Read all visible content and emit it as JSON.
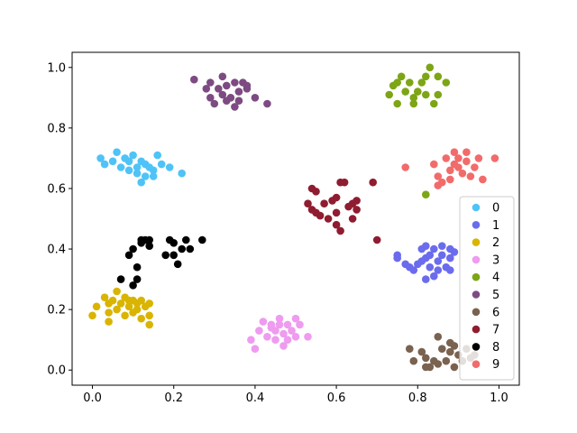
{
  "chart_data": {
    "type": "scatter",
    "title": "",
    "xlabel": "",
    "ylabel": "",
    "xlim": [
      -0.05,
      1.05
    ],
    "ylim": [
      -0.05,
      1.05
    ],
    "xticks": [
      "0.0",
      "0.2",
      "0.4",
      "0.6",
      "0.8",
      "1.0"
    ],
    "yticks": [
      "0.0",
      "0.2",
      "0.4",
      "0.6",
      "0.8",
      "1.0"
    ],
    "grid": false,
    "legend_position": "lower-right",
    "series": [
      {
        "name": "0",
        "color": "#4fc3f7",
        "points": [
          [
            0.02,
            0.7
          ],
          [
            0.03,
            0.68
          ],
          [
            0.05,
            0.69
          ],
          [
            0.06,
            0.72
          ],
          [
            0.07,
            0.67
          ],
          [
            0.08,
            0.7
          ],
          [
            0.09,
            0.66
          ],
          [
            0.09,
            0.69
          ],
          [
            0.1,
            0.71
          ],
          [
            0.11,
            0.67
          ],
          [
            0.11,
            0.65
          ],
          [
            0.12,
            0.62
          ],
          [
            0.12,
            0.69
          ],
          [
            0.13,
            0.64
          ],
          [
            0.13,
            0.68
          ],
          [
            0.14,
            0.67
          ],
          [
            0.15,
            0.64
          ],
          [
            0.16,
            0.71
          ],
          [
            0.17,
            0.68
          ],
          [
            0.19,
            0.67
          ],
          [
            0.22,
            0.65
          ],
          [
            0.15,
            0.66
          ]
        ]
      },
      {
        "name": "1",
        "color": "#6b6bee",
        "points": [
          [
            0.75,
            0.38
          ],
          [
            0.75,
            0.37
          ],
          [
            0.77,
            0.35
          ],
          [
            0.78,
            0.34
          ],
          [
            0.79,
            0.33
          ],
          [
            0.8,
            0.35
          ],
          [
            0.81,
            0.4
          ],
          [
            0.82,
            0.41
          ],
          [
            0.82,
            0.37
          ],
          [
            0.83,
            0.38
          ],
          [
            0.83,
            0.34
          ],
          [
            0.84,
            0.31
          ],
          [
            0.84,
            0.4
          ],
          [
            0.85,
            0.36
          ],
          [
            0.85,
            0.33
          ],
          [
            0.86,
            0.38
          ],
          [
            0.86,
            0.41
          ],
          [
            0.87,
            0.34
          ],
          [
            0.88,
            0.4
          ],
          [
            0.88,
            0.37
          ],
          [
            0.88,
            0.33
          ],
          [
            0.89,
            0.39
          ],
          [
            0.81,
            0.36
          ],
          [
            0.82,
            0.3
          ]
        ]
      },
      {
        "name": "2",
        "color": "#d9b400",
        "points": [
          [
            0.0,
            0.18
          ],
          [
            0.01,
            0.21
          ],
          [
            0.03,
            0.24
          ],
          [
            0.04,
            0.22
          ],
          [
            0.04,
            0.19
          ],
          [
            0.04,
            0.16
          ],
          [
            0.05,
            0.23
          ],
          [
            0.06,
            0.26
          ],
          [
            0.06,
            0.2
          ],
          [
            0.07,
            0.22
          ],
          [
            0.08,
            0.24
          ],
          [
            0.08,
            0.18
          ],
          [
            0.09,
            0.21
          ],
          [
            0.09,
            0.23
          ],
          [
            0.1,
            0.19
          ],
          [
            0.11,
            0.22
          ],
          [
            0.11,
            0.2
          ],
          [
            0.12,
            0.17
          ],
          [
            0.12,
            0.23
          ],
          [
            0.13,
            0.21
          ],
          [
            0.14,
            0.18
          ],
          [
            0.14,
            0.15
          ],
          [
            0.14,
            0.22
          ],
          [
            0.1,
            0.23
          ]
        ]
      },
      {
        "name": "3",
        "color": "#ee9bf0",
        "points": [
          [
            0.39,
            0.1
          ],
          [
            0.4,
            0.07
          ],
          [
            0.41,
            0.13
          ],
          [
            0.42,
            0.16
          ],
          [
            0.43,
            0.11
          ],
          [
            0.44,
            0.14
          ],
          [
            0.45,
            0.1
          ],
          [
            0.45,
            0.13
          ],
          [
            0.46,
            0.17
          ],
          [
            0.47,
            0.12
          ],
          [
            0.47,
            0.08
          ],
          [
            0.48,
            0.15
          ],
          [
            0.48,
            0.1
          ],
          [
            0.49,
            0.13
          ],
          [
            0.5,
            0.17
          ],
          [
            0.5,
            0.11
          ],
          [
            0.51,
            0.15
          ],
          [
            0.53,
            0.11
          ],
          [
            0.46,
            0.15
          ],
          [
            0.44,
            0.15
          ]
        ]
      },
      {
        "name": "4",
        "color": "#7da516",
        "points": [
          [
            0.73,
            0.91
          ],
          [
            0.74,
            0.94
          ],
          [
            0.75,
            0.88
          ],
          [
            0.75,
            0.95
          ],
          [
            0.76,
            0.97
          ],
          [
            0.77,
            0.92
          ],
          [
            0.78,
            0.95
          ],
          [
            0.79,
            0.9
          ],
          [
            0.79,
            0.88
          ],
          [
            0.8,
            0.92
          ],
          [
            0.81,
            0.95
          ],
          [
            0.82,
            0.97
          ],
          [
            0.82,
            0.91
          ],
          [
            0.83,
            1.0
          ],
          [
            0.84,
            0.88
          ],
          [
            0.85,
            0.91
          ],
          [
            0.85,
            0.97
          ],
          [
            0.87,
            0.95
          ],
          [
            0.82,
            0.58
          ]
        ]
      },
      {
        "name": "5",
        "color": "#7d4b82",
        "points": [
          [
            0.25,
            0.96
          ],
          [
            0.28,
            0.93
          ],
          [
            0.29,
            0.95
          ],
          [
            0.29,
            0.9
          ],
          [
            0.3,
            0.88
          ],
          [
            0.31,
            0.93
          ],
          [
            0.32,
            0.97
          ],
          [
            0.32,
            0.91
          ],
          [
            0.33,
            0.94
          ],
          [
            0.33,
            0.89
          ],
          [
            0.34,
            0.9
          ],
          [
            0.35,
            0.87
          ],
          [
            0.35,
            0.95
          ],
          [
            0.36,
            0.92
          ],
          [
            0.36,
            0.89
          ],
          [
            0.37,
            0.95
          ],
          [
            0.38,
            0.93
          ],
          [
            0.38,
            0.94
          ],
          [
            0.4,
            0.9
          ],
          [
            0.43,
            0.88
          ]
        ]
      },
      {
        "name": "6",
        "color": "#7a6250",
        "points": [
          [
            0.78,
            0.07
          ],
          [
            0.79,
            0.03
          ],
          [
            0.81,
            0.06
          ],
          [
            0.82,
            0.04
          ],
          [
            0.82,
            0.01
          ],
          [
            0.83,
            0.01
          ],
          [
            0.84,
            0.03
          ],
          [
            0.85,
            0.02
          ],
          [
            0.85,
            0.11
          ],
          [
            0.86,
            0.07
          ],
          [
            0.87,
            0.03
          ],
          [
            0.88,
            0.06
          ],
          [
            0.88,
            0.09
          ],
          [
            0.89,
            0.08
          ],
          [
            0.89,
            0.01
          ],
          [
            0.9,
            0.05
          ],
          [
            0.91,
            0.03
          ],
          [
            0.92,
            0.07
          ],
          [
            0.93,
            0.04
          ],
          [
            0.94,
            0.05
          ]
        ]
      },
      {
        "name": "7",
        "color": "#8f1c30",
        "points": [
          [
            0.53,
            0.55
          ],
          [
            0.54,
            0.53
          ],
          [
            0.54,
            0.6
          ],
          [
            0.55,
            0.52
          ],
          [
            0.55,
            0.59
          ],
          [
            0.56,
            0.51
          ],
          [
            0.57,
            0.55
          ],
          [
            0.58,
            0.5
          ],
          [
            0.59,
            0.56
          ],
          [
            0.6,
            0.52
          ],
          [
            0.6,
            0.57
          ],
          [
            0.6,
            0.48
          ],
          [
            0.61,
            0.62
          ],
          [
            0.61,
            0.46
          ],
          [
            0.62,
            0.62
          ],
          [
            0.63,
            0.54
          ],
          [
            0.64,
            0.5
          ],
          [
            0.64,
            0.55
          ],
          [
            0.65,
            0.53
          ],
          [
            0.65,
            0.56
          ],
          [
            0.69,
            0.62
          ],
          [
            0.7,
            0.43
          ]
        ]
      },
      {
        "name": "8",
        "color": "#000000",
        "points": [
          [
            0.07,
            0.3
          ],
          [
            0.09,
            0.38
          ],
          [
            0.1,
            0.4
          ],
          [
            0.1,
            0.28
          ],
          [
            0.11,
            0.3
          ],
          [
            0.11,
            0.34
          ],
          [
            0.12,
            0.42
          ],
          [
            0.12,
            0.43
          ],
          [
            0.13,
            0.43
          ],
          [
            0.14,
            0.41
          ],
          [
            0.14,
            0.43
          ],
          [
            0.18,
            0.38
          ],
          [
            0.19,
            0.43
          ],
          [
            0.2,
            0.38
          ],
          [
            0.2,
            0.42
          ],
          [
            0.21,
            0.35
          ],
          [
            0.22,
            0.4
          ],
          [
            0.23,
            0.43
          ],
          [
            0.24,
            0.4
          ],
          [
            0.27,
            0.43
          ]
        ]
      },
      {
        "name": "9",
        "color": "#f26b6b",
        "points": [
          [
            0.77,
            0.67
          ],
          [
            0.84,
            0.68
          ],
          [
            0.85,
            0.64
          ],
          [
            0.85,
            0.61
          ],
          [
            0.86,
            0.62
          ],
          [
            0.87,
            0.7
          ],
          [
            0.88,
            0.66
          ],
          [
            0.88,
            0.63
          ],
          [
            0.89,
            0.68
          ],
          [
            0.89,
            0.72
          ],
          [
            0.9,
            0.7
          ],
          [
            0.9,
            0.67
          ],
          [
            0.91,
            0.65
          ],
          [
            0.92,
            0.72
          ],
          [
            0.92,
            0.69
          ],
          [
            0.93,
            0.64
          ],
          [
            0.94,
            0.67
          ],
          [
            0.95,
            0.7
          ],
          [
            0.96,
            0.63
          ],
          [
            0.99,
            0.7
          ]
        ]
      }
    ]
  }
}
